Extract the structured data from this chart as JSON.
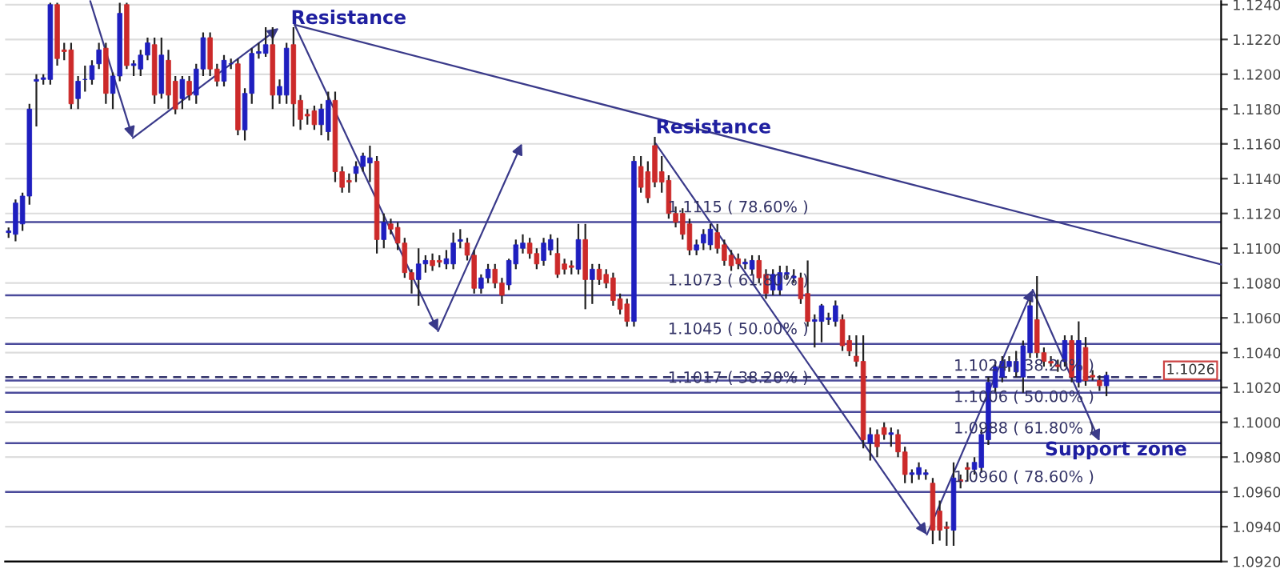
{
  "chart_data": {
    "type": "candlestick",
    "categories": [
      null,
      null,
      null,
      null,
      null,
      null,
      null,
      null,
      null,
      null,
      null,
      null,
      null,
      null,
      null,
      null,
      null,
      null,
      null,
      null,
      null,
      null,
      null,
      null,
      null,
      null,
      null,
      null,
      null,
      null,
      null,
      null,
      null,
      null,
      null,
      null,
      null,
      null,
      null,
      null,
      null,
      null,
      null,
      null,
      null,
      null,
      null,
      null,
      null,
      null,
      null,
      null,
      null,
      null,
      null,
      null,
      null,
      null,
      null,
      null,
      null,
      null,
      null,
      null,
      null,
      null,
      null,
      null,
      null,
      null,
      null,
      null,
      null,
      null,
      null,
      null,
      null,
      null,
      null,
      null,
      null,
      null,
      null,
      null,
      null,
      null,
      null,
      null,
      null,
      null,
      null,
      null,
      null,
      null,
      null,
      null,
      null,
      null,
      null,
      null,
      null,
      null,
      null,
      null,
      null,
      null,
      null,
      null,
      null,
      null,
      null,
      null,
      null,
      null,
      null,
      null,
      null,
      null,
      null,
      null,
      null,
      null,
      null,
      null,
      null,
      null,
      null,
      null,
      null,
      null,
      null,
      null,
      null,
      null,
      null,
      null,
      null,
      null,
      null,
      null,
      null,
      null,
      null,
      null,
      null,
      null,
      null,
      null,
      null,
      null,
      null,
      null,
      null,
      null,
      null,
      null,
      null,
      null,
      null,
      null,
      null,
      null,
      null,
      null,
      null,
      null,
      null,
      null,
      null,
      null,
      null,
      null,
      null,
      null,
      null
    ],
    "ohlc": [
      [
        1.1109,
        1.1112,
        1.1106,
        1.111
      ],
      [
        1.1108,
        1.1128,
        1.1104,
        1.1126
      ],
      [
        1.1114,
        1.1132,
        1.111,
        1.113
      ],
      [
        1.113,
        1.1183,
        1.1125,
        1.118
      ],
      [
        1.1196,
        1.12,
        1.117,
        1.1197
      ],
      [
        1.1197,
        1.12,
        1.1194,
        1.1198
      ],
      [
        1.1197,
        1.1241,
        1.1194,
        1.124
      ],
      [
        1.124,
        1.1241,
        1.1205,
        1.1209
      ],
      [
        1.1214,
        1.1218,
        1.1208,
        1.1213
      ],
      [
        1.1214,
        1.1218,
        1.118,
        1.1183
      ],
      [
        1.1186,
        1.1199,
        1.118,
        1.1196
      ],
      [
        1.1197,
        1.1205,
        1.119,
        1.1197
      ],
      [
        1.1197,
        1.1208,
        1.1194,
        1.1205
      ],
      [
        1.1206,
        1.1218,
        1.1203,
        1.1214
      ],
      [
        1.1215,
        1.1218,
        1.1183,
        1.1189
      ],
      [
        1.1189,
        1.1201,
        1.118,
        1.1199
      ],
      [
        1.1199,
        1.1241,
        1.1196,
        1.1235
      ],
      [
        1.124,
        1.1241,
        1.1203,
        1.1205
      ],
      [
        1.1205,
        1.1208,
        1.1199,
        1.1206
      ],
      [
        1.1203,
        1.1214,
        1.1199,
        1.1211
      ],
      [
        1.1211,
        1.1221,
        1.1208,
        1.1218
      ],
      [
        1.1217,
        1.1221,
        1.1183,
        1.1188
      ],
      [
        1.1189,
        1.1221,
        1.1186,
        1.1211
      ],
      [
        1.1208,
        1.1214,
        1.118,
        1.1188
      ],
      [
        1.1196,
        1.1199,
        1.1177,
        1.118
      ],
      [
        1.1186,
        1.1199,
        1.118,
        1.1197
      ],
      [
        1.1196,
        1.1199,
        1.1185,
        1.1188
      ],
      [
        1.1188,
        1.1206,
        1.1183,
        1.1203
      ],
      [
        1.1203,
        1.1224,
        1.1199,
        1.1221
      ],
      [
        1.1221,
        1.1224,
        1.1199,
        1.1203
      ],
      [
        1.1203,
        1.1206,
        1.1193,
        1.1196
      ],
      [
        1.1196,
        1.1211,
        1.1193,
        1.1208
      ],
      [
        1.1206,
        1.1209,
        1.1203,
        1.1206
      ],
      [
        1.1206,
        1.1209,
        1.1165,
        1.1168
      ],
      [
        1.1168,
        1.1192,
        1.1162,
        1.1189
      ],
      [
        1.1189,
        1.1215,
        1.1183,
        1.1212
      ],
      [
        1.1212,
        1.1218,
        1.1209,
        1.1213
      ],
      [
        1.1212,
        1.1227,
        1.121,
        1.1217
      ],
      [
        1.1217,
        1.1227,
        1.118,
        1.1188
      ],
      [
        1.1188,
        1.1197,
        1.1183,
        1.1193
      ],
      [
        1.1188,
        1.1218,
        1.1183,
        1.1215
      ],
      [
        1.1217,
        1.1227,
        1.117,
        1.1183
      ],
      [
        1.1185,
        1.1188,
        1.1168,
        1.1174
      ],
      [
        1.1177,
        1.118,
        1.1171,
        1.1176
      ],
      [
        1.1179,
        1.1182,
        1.1168,
        1.1171
      ],
      [
        1.1171,
        1.1183,
        1.1165,
        1.118
      ],
      [
        1.1167,
        1.119,
        1.1162,
        1.1185
      ],
      [
        1.1185,
        1.119,
        1.1138,
        1.1144
      ],
      [
        1.1144,
        1.1147,
        1.1132,
        1.1135
      ],
      [
        1.1139,
        1.1143,
        1.1132,
        1.1138
      ],
      [
        1.1143,
        1.115,
        1.1138,
        1.1147
      ],
      [
        1.1147,
        1.1155,
        1.1144,
        1.1153
      ],
      [
        1.1149,
        1.1159,
        1.1138,
        1.1152
      ],
      [
        1.115,
        1.1153,
        1.1097,
        1.1105
      ],
      [
        1.1105,
        1.112,
        1.11,
        1.1115
      ],
      [
        1.1114,
        1.1117,
        1.1108,
        1.1111
      ],
      [
        1.1112,
        1.1115,
        1.1099,
        1.1103
      ],
      [
        1.1103,
        1.1106,
        1.1083,
        1.1086
      ],
      [
        1.1086,
        1.1088,
        1.1074,
        1.1082
      ],
      [
        1.1082,
        1.11,
        1.1067,
        1.1091
      ],
      [
        1.1091,
        1.1096,
        1.1086,
        1.1093
      ],
      [
        1.1093,
        1.1097,
        1.1087,
        1.109
      ],
      [
        1.1093,
        1.1096,
        1.1089,
        1.1092
      ],
      [
        1.1091,
        1.1099,
        1.1088,
        1.1094
      ],
      [
        1.1091,
        1.1109,
        1.1088,
        1.1103
      ],
      [
        1.1104,
        1.1111,
        1.11,
        1.1105
      ],
      [
        1.1103,
        1.1106,
        1.1093,
        1.1096
      ],
      [
        1.1096,
        1.1099,
        1.1074,
        1.1077
      ],
      [
        1.1077,
        1.1085,
        1.1074,
        1.1083
      ],
      [
        1.1083,
        1.1091,
        1.108,
        1.1088
      ],
      [
        1.1088,
        1.1091,
        1.1077,
        1.108
      ],
      [
        1.108,
        1.1083,
        1.1068,
        1.1073
      ],
      [
        1.1079,
        1.1094,
        1.1076,
        1.1093
      ],
      [
        1.1091,
        1.1105,
        1.1088,
        1.1102
      ],
      [
        1.11,
        1.1108,
        1.1097,
        1.1103
      ],
      [
        1.1103,
        1.1106,
        1.1094,
        1.1097
      ],
      [
        1.1097,
        1.11,
        1.1088,
        1.1091
      ],
      [
        1.1093,
        1.1106,
        1.109,
        1.1103
      ],
      [
        1.1099,
        1.1108,
        1.1096,
        1.1105
      ],
      [
        1.1097,
        1.1106,
        1.1083,
        1.1085
      ],
      [
        1.1091,
        1.1094,
        1.1085,
        1.1088
      ],
      [
        1.109,
        1.1093,
        1.1085,
        1.1089
      ],
      [
        1.1088,
        1.1114,
        1.1085,
        1.1105
      ],
      [
        1.1105,
        1.1114,
        1.1065,
        1.1082
      ],
      [
        1.1082,
        1.1091,
        1.1068,
        1.1088
      ],
      [
        1.1088,
        1.1091,
        1.1079,
        1.1082
      ],
      [
        1.1085,
        1.1088,
        1.1077,
        1.108
      ],
      [
        1.1083,
        1.1086,
        1.1067,
        1.107
      ],
      [
        1.1071,
        1.1074,
        1.1062,
        1.1065
      ],
      [
        1.1068,
        1.1071,
        1.1055,
        1.1058
      ],
      [
        1.1058,
        1.1153,
        1.1055,
        1.115
      ],
      [
        1.1147,
        1.1153,
        1.1132,
        1.1135
      ],
      [
        1.1144,
        1.115,
        1.1126,
        1.1129
      ],
      [
        1.1159,
        1.1164,
        1.1135,
        1.1138
      ],
      [
        1.1144,
        1.1153,
        1.1132,
        1.1138
      ],
      [
        1.1139,
        1.1142,
        1.1117,
        1.112
      ],
      [
        1.112,
        1.1124,
        1.1112,
        1.1115
      ],
      [
        1.112,
        1.1123,
        1.1105,
        1.1108
      ],
      [
        1.1114,
        1.1117,
        1.1096,
        1.1099
      ],
      [
        1.1099,
        1.1105,
        1.1096,
        1.1102
      ],
      [
        1.1103,
        1.1111,
        1.1099,
        1.1108
      ],
      [
        1.1102,
        1.1114,
        1.1099,
        1.1111
      ],
      [
        1.1109,
        1.1114,
        1.1097,
        1.11
      ],
      [
        1.1102,
        1.1105,
        1.109,
        1.1093
      ],
      [
        1.1096,
        1.1099,
        1.1087,
        1.109
      ],
      [
        1.1094,
        1.1097,
        1.1088,
        1.1091
      ],
      [
        1.1091,
        1.1094,
        1.1088,
        1.1092
      ],
      [
        1.1088,
        1.1096,
        1.1085,
        1.1093
      ],
      [
        1.1093,
        1.1096,
        1.108,
        1.1083
      ],
      [
        1.1085,
        1.1088,
        1.1071,
        1.1074
      ],
      [
        1.1076,
        1.1088,
        1.1073,
        1.1085
      ],
      [
        1.1076,
        1.109,
        1.1073,
        1.1086
      ],
      [
        1.1085,
        1.109,
        1.1082,
        1.1086
      ],
      [
        1.1083,
        1.1088,
        1.108,
        1.1084
      ],
      [
        1.1083,
        1.1086,
        1.1068,
        1.1071
      ],
      [
        1.1074,
        1.1093,
        1.1055,
        1.1058
      ],
      [
        1.1058,
        1.1062,
        1.1043,
        1.1059
      ],
      [
        1.1058,
        1.1068,
        1.1046,
        1.1067
      ],
      [
        1.1059,
        1.1063,
        1.1056,
        1.106
      ],
      [
        1.1058,
        1.107,
        1.1055,
        1.1067
      ],
      [
        1.1059,
        1.1062,
        1.1041,
        1.1044
      ],
      [
        1.1047,
        1.105,
        1.1038,
        1.1041
      ],
      [
        1.1038,
        1.105,
        1.1032,
        1.1035
      ],
      [
        1.1035,
        1.105,
        1.0985,
        1.099
      ],
      [
        1.0988,
        1.0997,
        1.0978,
        1.0993
      ],
      [
        1.0993,
        1.0996,
        1.098,
        1.0986
      ],
      [
        1.0997,
        1.1,
        1.099,
        1.0993
      ],
      [
        1.0993,
        1.0997,
        1.0986,
        1.0994
      ],
      [
        1.0993,
        1.0996,
        1.098,
        1.0983
      ],
      [
        1.0983,
        1.0986,
        1.0965,
        1.097
      ],
      [
        1.097,
        1.0973,
        1.0965,
        1.0971
      ],
      [
        1.097,
        1.0977,
        1.0967,
        1.0974
      ],
      [
        1.097,
        1.0973,
        1.0967,
        1.0971
      ],
      [
        1.0965,
        1.0968,
        1.093,
        1.0938
      ],
      [
        1.0949,
        1.0955,
        1.0932,
        1.0938
      ],
      [
        1.094,
        1.0943,
        1.0929,
        1.0939
      ],
      [
        1.0938,
        1.0977,
        1.0929,
        1.0968
      ],
      [
        1.0967,
        1.097,
        1.0962,
        1.0966
      ],
      [
        1.0974,
        1.0977,
        1.0966,
        1.0973
      ],
      [
        1.0973,
        1.098,
        1.097,
        1.0977
      ],
      [
        1.0974,
        1.0996,
        1.0971,
        1.0993
      ],
      [
        1.099,
        1.1026,
        1.0987,
        1.1023
      ],
      [
        1.102,
        1.1035,
        1.1017,
        1.1032
      ],
      [
        1.1026,
        1.1038,
        1.1023,
        1.1035
      ],
      [
        1.1032,
        1.1038,
        1.1029,
        1.1035
      ],
      [
        1.1029,
        1.1041,
        1.1026,
        1.1035
      ],
      [
        1.1026,
        1.1047,
        1.1017,
        1.1044
      ],
      [
        1.104,
        1.107,
        1.1037,
        1.1067
      ],
      [
        1.1059,
        1.1084,
        1.1037,
        1.104
      ],
      [
        1.104,
        1.1043,
        1.1032,
        1.1035
      ],
      [
        1.1035,
        1.1038,
        1.1032,
        1.1034
      ],
      [
        1.1033,
        1.1036,
        1.1029,
        1.1032
      ],
      [
        1.1035,
        1.105,
        1.1032,
        1.1047
      ],
      [
        1.1047,
        1.105,
        1.1023,
        1.1026
      ],
      [
        1.1023,
        1.1058,
        1.102,
        1.1047
      ],
      [
        1.1043,
        1.1049,
        1.1021,
        1.1024
      ],
      [
        1.1027,
        1.103,
        1.1024,
        1.1026
      ],
      [
        1.1024,
        1.1027,
        1.1018,
        1.1021
      ],
      [
        1.1021,
        1.1029,
        1.1015,
        1.1027
      ],
      null,
      null,
      null,
      null,
      null,
      null,
      null,
      null,
      null,
      null,
      null,
      null,
      null,
      null,
      null,
      null
    ],
    "ylim": [
      1.092,
      1.1242
    ],
    "yticks": [
      {
        "value": 1.092,
        "label": "1.0920"
      },
      {
        "value": 1.094,
        "label": "1.0940"
      },
      {
        "value": 1.096,
        "label": "1.0960"
      },
      {
        "value": 1.098,
        "label": "1.0980"
      },
      {
        "value": 1.1,
        "label": "1.1000"
      },
      {
        "value": 1.102,
        "label": "1.1020"
      },
      {
        "value": 1.104,
        "label": "1.1040"
      },
      {
        "value": 1.106,
        "label": "1.1060"
      },
      {
        "value": 1.108,
        "label": "1.1080"
      },
      {
        "value": 1.11,
        "label": "1.1100"
      },
      {
        "value": 1.112,
        "label": "1.1120"
      },
      {
        "value": 1.114,
        "label": "1.1140"
      },
      {
        "value": 1.116,
        "label": "1.1160"
      },
      {
        "value": 1.118,
        "label": "1.1180"
      },
      {
        "value": 1.12,
        "label": "1.1200"
      },
      {
        "value": 1.122,
        "label": "1.1220"
      },
      {
        "value": 1.124,
        "label": "1.1240"
      }
    ],
    "ref_lines": [
      {
        "axis": "y",
        "value": 1.1115,
        "label": "1.1115 ( 78.60% )",
        "color": "#4b4b9b"
      },
      {
        "axis": "y",
        "value": 1.1073,
        "label": "1.1073 ( 61.80% )",
        "color": "#4b4b9b"
      },
      {
        "axis": "y",
        "value": 1.1045,
        "label": "1.1045 ( 50.00% )",
        "color": "#4b4b9b"
      },
      {
        "axis": "y",
        "value": 1.1017,
        "label": "1.1017 ( 38.20% )",
        "color": "#4b4b9b"
      },
      {
        "axis": "y",
        "value": 1.1024,
        "label": "1.1024 ( 38.20% )",
        "color": "#4b4b9b"
      },
      {
        "axis": "y",
        "value": 1.1006,
        "label": "1.1006 ( 50.00% )",
        "color": "#4b4b9b"
      },
      {
        "axis": "y",
        "value": 1.0988,
        "label": "1.0988 ( 61.80% )",
        "color": "#4b4b9b"
      },
      {
        "axis": "y",
        "value": 1.096,
        "label": "1.0960 ( 78.60% )",
        "color": "#4b4b9b"
      },
      {
        "axis": "y",
        "value": 1.1026,
        "label": "1.1026",
        "color": "#33336b",
        "line_style": "dashed"
      }
    ],
    "annotations": [
      "Resistance",
      "Resistance",
      "Support zone"
    ],
    "grid": "y",
    "tick_labels": "y"
  }
}
